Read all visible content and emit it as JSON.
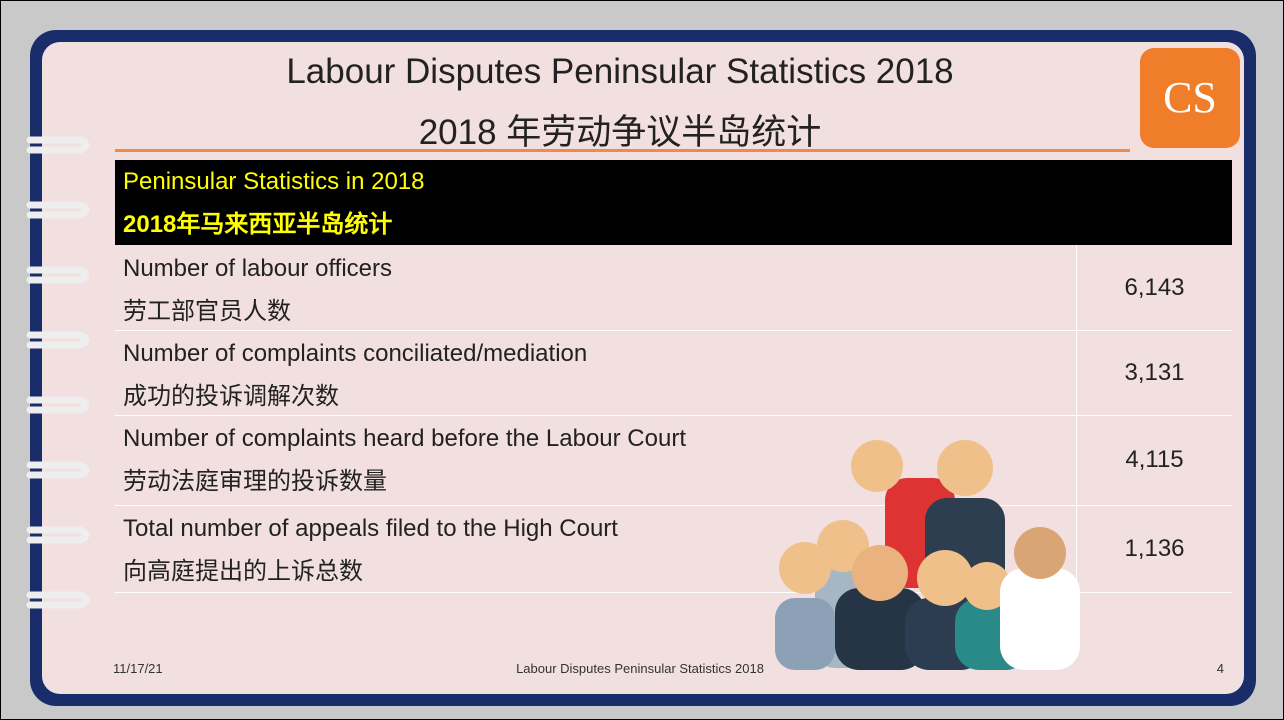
{
  "header": {
    "title_en": "Labour Disputes Peninsular Statistics 2018",
    "title_zh": "2018 年劳动争议半岛统计",
    "logo": "CS"
  },
  "table": {
    "heading": [
      "Peninsular Statistics in 2018",
      "2018年马来西亚半岛统计"
    ],
    "rows": [
      [
        "Number of labour officers",
        "劳工部官员人数",
        "6,143"
      ],
      [
        "Number of complaints conciliated/mediation",
        "成功的投诉调解次数",
        "3,131"
      ],
      [
        "Number of complaints heard before the Labour Court",
        "劳动法庭审理的投诉数量",
        "4,115"
      ],
      [
        "Total number of appeals filed to the High Court",
        "向高庭提出的上诉总数",
        "1,136"
      ]
    ]
  },
  "footer": {
    "date": "11/17/21",
    "text": "Labour Disputes Peninsular Statistics 2018",
    "page": "4"
  }
}
